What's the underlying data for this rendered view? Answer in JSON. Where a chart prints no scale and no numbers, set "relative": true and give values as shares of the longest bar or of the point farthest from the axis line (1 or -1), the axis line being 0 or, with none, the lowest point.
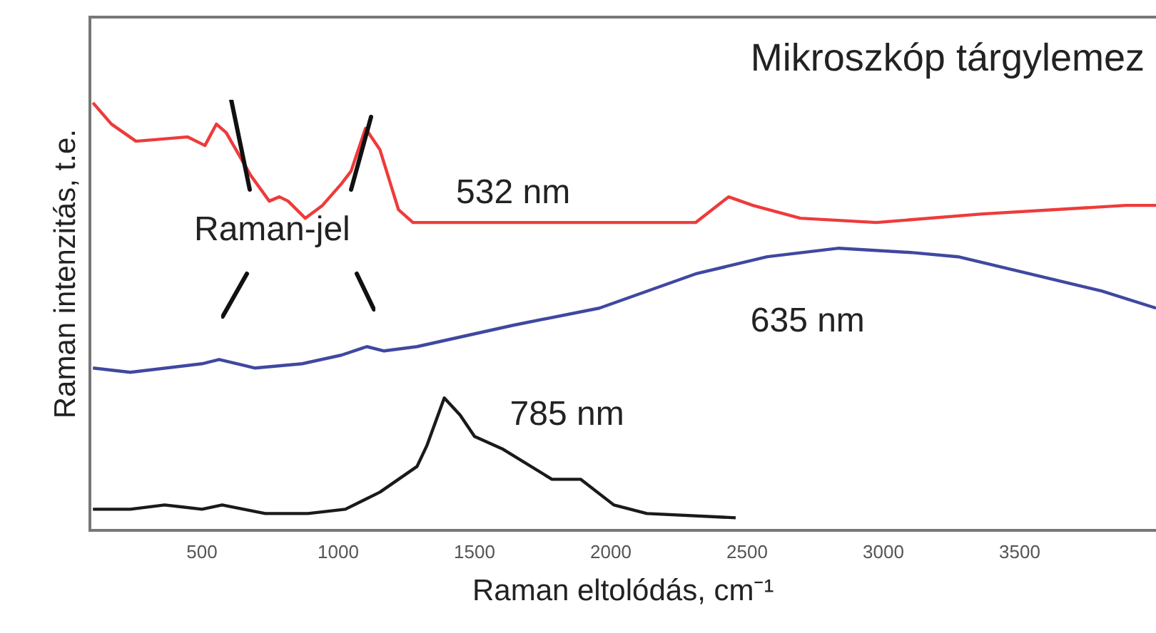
{
  "chart_data": {
    "type": "line",
    "title": "Mikroszkóp tárgylemez",
    "xlabel": "Raman eltolódás, cm⁻¹",
    "ylabel": "Raman intenzitás, t.e.",
    "relative": true,
    "xlim": [
      90,
      4000
    ],
    "xticks": [
      500,
      1000,
      1500,
      2000,
      2500,
      3000,
      3500
    ],
    "grid": false,
    "legend": false,
    "marker": "none",
    "line_style": "solid",
    "annotations": [
      "Raman-jel"
    ],
    "series": [
      {
        "name": "532 nm",
        "color": "#ee3b3b",
        "x": [
          100,
          168,
          258,
          447,
          511,
          553,
          589,
          679,
          747,
          784,
          816,
          879,
          942,
          1011,
          1047,
          1100,
          1153,
          1221,
          1274,
          1521,
          1958,
          2311,
          2432,
          2521,
          2695,
          2974,
          3363,
          3889,
          4000
        ],
        "values": [
          1.0,
          0.95,
          0.91,
          0.92,
          0.9,
          0.95,
          0.93,
          0.83,
          0.77,
          0.78,
          0.77,
          0.73,
          0.76,
          0.81,
          0.84,
          0.94,
          0.89,
          0.75,
          0.72,
          0.72,
          0.72,
          0.72,
          0.78,
          0.76,
          0.73,
          0.72,
          0.74,
          0.76,
          0.76
        ]
      },
      {
        "name": "635 nm",
        "color": "#3f48a0",
        "x": [
          100,
          237,
          500,
          563,
          695,
          868,
          1011,
          1105,
          1168,
          1289,
          1642,
          1958,
          2311,
          2574,
          2837,
          3100,
          3274,
          3537,
          3800,
          4000
        ],
        "values": [
          0.38,
          0.37,
          0.39,
          0.4,
          0.38,
          0.39,
          0.41,
          0.43,
          0.42,
          0.43,
          0.48,
          0.52,
          0.6,
          0.64,
          0.66,
          0.65,
          0.64,
          0.6,
          0.56,
          0.52
        ]
      },
      {
        "name": "785 nm",
        "color": "#1a1a1a",
        "x": [
          100,
          237,
          363,
          500,
          574,
          732,
          889,
          1026,
          1153,
          1289,
          1326,
          1389,
          1447,
          1500,
          1605,
          1784,
          1889,
          2011,
          2132,
          2458
        ],
        "values": [
          0.05,
          0.05,
          0.06,
          0.05,
          0.06,
          0.04,
          0.04,
          0.05,
          0.09,
          0.15,
          0.2,
          0.31,
          0.27,
          0.22,
          0.19,
          0.12,
          0.12,
          0.06,
          0.04,
          0.03
        ]
      }
    ]
  }
}
